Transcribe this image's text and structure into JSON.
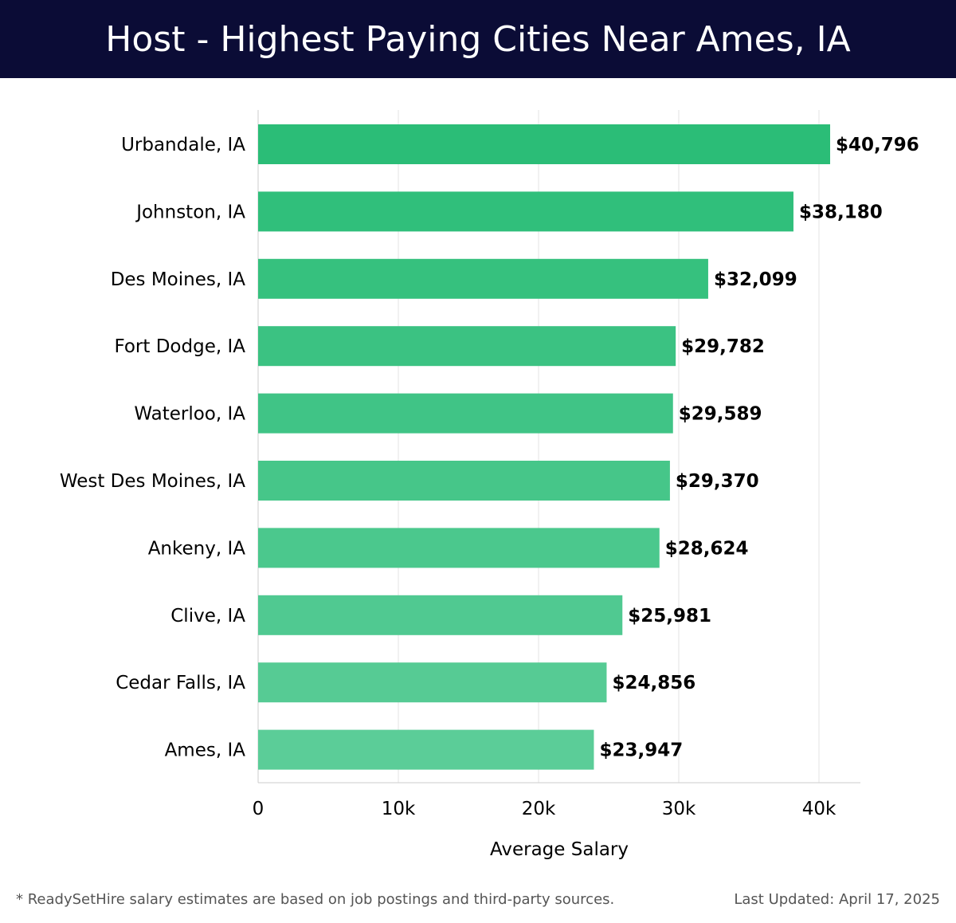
{
  "header": {
    "title": "Host - Highest Paying Cities Near Ames, IA"
  },
  "footer": {
    "note": "* ReadySetHire salary estimates are based on job postings and third-party sources.",
    "updated": "Last Updated: April 17, 2025"
  },
  "chart_data": {
    "type": "bar",
    "orientation": "horizontal",
    "title": "Host - Highest Paying Cities Near Ames, IA",
    "xlabel": "Average Salary",
    "ylabel": "",
    "categories": [
      "Urbandale, IA",
      "Johnston, IA",
      "Des Moines, IA",
      "Fort Dodge, IA",
      "Waterloo, IA",
      "West Des Moines, IA",
      "Ankeny, IA",
      "Clive, IA",
      "Cedar Falls, IA",
      "Ames, IA"
    ],
    "values": [
      40796,
      38180,
      32099,
      29782,
      29589,
      29370,
      28624,
      25981,
      24856,
      23947
    ],
    "value_labels": [
      "$40,796",
      "$38,180",
      "$32,099",
      "$29,782",
      "$29,589",
      "$29,370",
      "$28,624",
      "$25,981",
      "$24,856",
      "$23,947"
    ],
    "xlim": [
      0,
      43000
    ],
    "xticks": [
      0,
      10000,
      20000,
      30000,
      40000
    ],
    "xtick_labels": [
      "0",
      "10k",
      "20k",
      "30k",
      "40k"
    ],
    "grid": true,
    "colors": {
      "bar_high": "#2bbd77",
      "bar_low": "#5bcd98",
      "grid": "#e3e3e3",
      "axis": "#cccccc",
      "label_text": "#000000"
    }
  }
}
